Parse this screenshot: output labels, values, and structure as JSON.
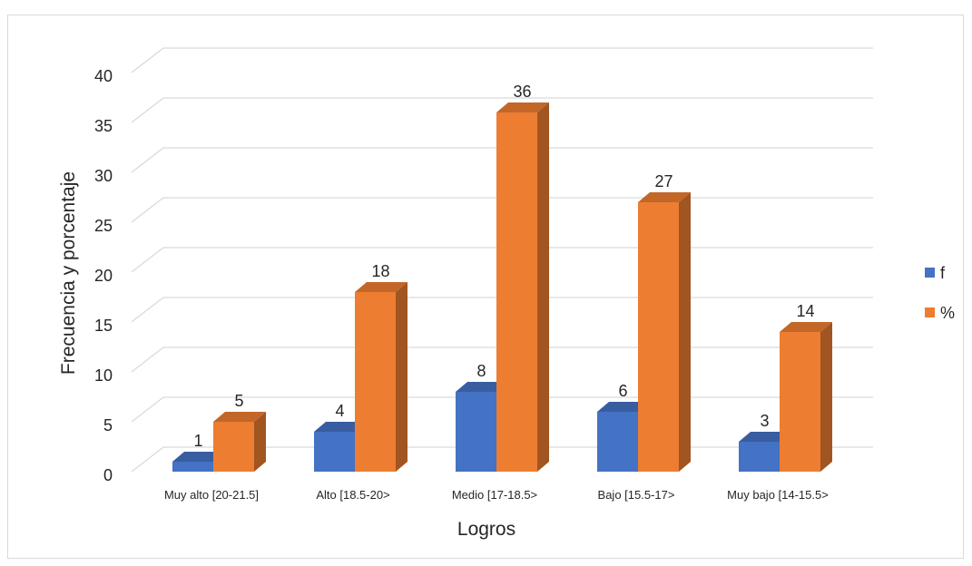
{
  "chart_data": {
    "type": "bar",
    "style": "3d-clustered-column",
    "categories": [
      "Muy alto [20-21.5]",
      "Alto [18.5-20>",
      "Medio [17-18.5>",
      "Bajo [15.5-17>",
      "Muy bajo [14-15.5>"
    ],
    "series": [
      {
        "name": "f",
        "values": [
          1,
          4,
          8,
          6,
          3
        ],
        "color": "#4472c4",
        "labels": [
          "1",
          "4",
          "8",
          "6",
          "3"
        ]
      },
      {
        "name": "%",
        "values": [
          5,
          18,
          36,
          27,
          14
        ],
        "color": "#ed7d31",
        "labels": [
          "5",
          "18",
          "36",
          "27",
          "14"
        ]
      }
    ],
    "y_ticks": [
      "0",
      "5",
      "10",
      "15",
      "20",
      "25",
      "30",
      "35",
      "40"
    ],
    "ylim": [
      0,
      40
    ],
    "xlabel": "Logros",
    "ylabel": "Frecuencia y porcentaje",
    "grid": true,
    "legend": "right"
  }
}
